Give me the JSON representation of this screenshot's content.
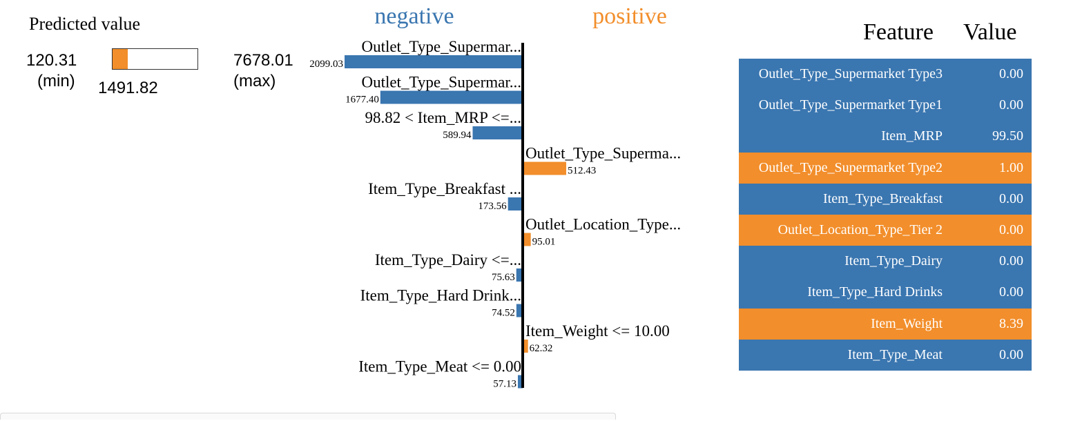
{
  "colors": {
    "negative": "#3a76b0",
    "positive": "#f28e2b",
    "axis": "#000000"
  },
  "predicted": {
    "title": "Predicted value",
    "min_value": "120.31",
    "min_label": "(min)",
    "max_value": "7678.01",
    "max_label": "(max)",
    "current_value": "1491.82",
    "fill_fraction": 0.18
  },
  "headers": {
    "negative": "negative",
    "positive": "positive"
  },
  "chart_data": {
    "type": "bar",
    "orientation": "horizontal",
    "diverging": true,
    "bars": [
      {
        "label": "Outlet_Type_Supermar...",
        "value": "2099.03",
        "display_value": "2099.03",
        "sign": "negative",
        "magnitude": 2099.03
      },
      {
        "label": "Outlet_Type_Supermar...",
        "value": "1677.40",
        "display_value": "1677.40",
        "sign": "negative",
        "magnitude": 1677.4
      },
      {
        "label": "98.82 < Item_MRP <=...",
        "value": "589.94",
        "display_value": "589.94",
        "sign": "negative",
        "magnitude": 589.94
      },
      {
        "label": "Outlet_Type_Superma...",
        "value": "512.43",
        "display_value": "512.43",
        "sign": "positive",
        "magnitude": 512.43
      },
      {
        "label": "Item_Type_Breakfast ...",
        "value": "173.56",
        "display_value": "173.56",
        "sign": "negative",
        "magnitude": 173.56
      },
      {
        "label": "Outlet_Location_Type...",
        "value": "95.01",
        "display_value": "95.01",
        "sign": "positive",
        "magnitude": 95.01
      },
      {
        "label": "Item_Type_Dairy <=...",
        "value": "75.63",
        "display_value": "75.63",
        "sign": "negative",
        "magnitude": 75.63
      },
      {
        "label": "Item_Type_Hard Drink...",
        "value": "74.52",
        "display_value": "74.52",
        "sign": "negative",
        "magnitude": 74.52
      },
      {
        "label": "Item_Weight <= 10.00",
        "value": "62.32",
        "display_value": "62.32",
        "sign": "positive",
        "magnitude": 62.32
      },
      {
        "label": "Item_Type_Meat <= 0.00",
        "value": "57.13",
        "display_value": "57.13",
        "sign": "negative",
        "magnitude": 57.13
      }
    ]
  },
  "table": {
    "feature_header": "Feature",
    "value_header": "Value",
    "rows": [
      {
        "feature": "Outlet_Type_Supermarket Type3",
        "value": "0.00",
        "sign": "negative"
      },
      {
        "feature": "Outlet_Type_Supermarket Type1",
        "value": "0.00",
        "sign": "negative"
      },
      {
        "feature": "Item_MRP",
        "value": "99.50",
        "sign": "negative"
      },
      {
        "feature": "Outlet_Type_Supermarket Type2",
        "value": "1.00",
        "sign": "positive"
      },
      {
        "feature": "Item_Type_Breakfast",
        "value": "0.00",
        "sign": "negative"
      },
      {
        "feature": "Outlet_Location_Type_Tier 2",
        "value": "0.00",
        "sign": "positive"
      },
      {
        "feature": "Item_Type_Dairy",
        "value": "0.00",
        "sign": "negative"
      },
      {
        "feature": "Item_Type_Hard Drinks",
        "value": "0.00",
        "sign": "negative"
      },
      {
        "feature": "Item_Weight",
        "value": "8.39",
        "sign": "positive"
      },
      {
        "feature": "Item_Type_Meat",
        "value": "0.00",
        "sign": "negative"
      }
    ]
  }
}
